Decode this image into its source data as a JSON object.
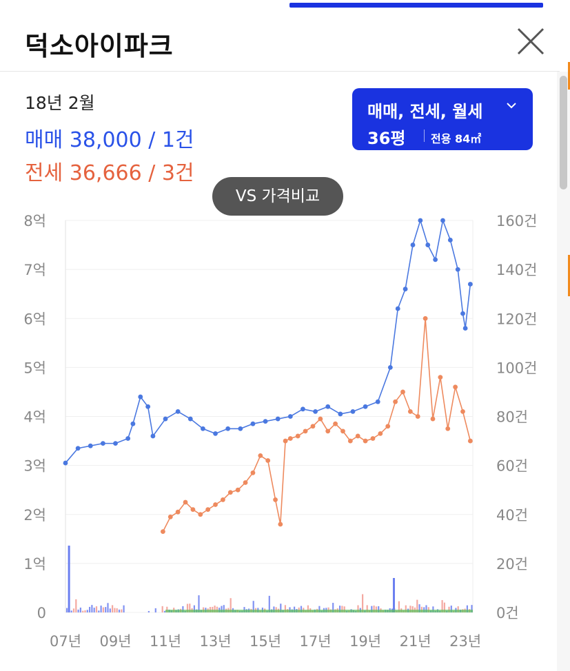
{
  "header": {
    "title": "덕소아이파크"
  },
  "summary": {
    "date": "18년 2월",
    "sale_text": "매매 38,000 / 1건",
    "jeonse_text": "전세 36,666 / 3건"
  },
  "filter": {
    "types": "매매, 전세, 월세",
    "area": "36평",
    "exclusive": "전용 84㎡"
  },
  "compare_button": "VS 가격비교",
  "colors": {
    "accent": "#1a33e0",
    "sale": "#4a78e0",
    "jeonse": "#ee8a5e",
    "volume_green": "#5cc05c"
  },
  "chart_data": {
    "type": "line",
    "x_tick_labels": [
      "07년",
      "09년",
      "11년",
      "13년",
      "15년",
      "17년",
      "19년",
      "21년",
      "23년"
    ],
    "y_left_labels": [
      "0",
      "1억",
      "2억",
      "3억",
      "4억",
      "5억",
      "6억",
      "7억",
      "8억"
    ],
    "y_left_range": [
      0,
      8
    ],
    "y_right_labels": [
      "0건",
      "20건",
      "40건",
      "60건",
      "80건",
      "100건",
      "120건",
      "140건",
      "160건"
    ],
    "y_right_range": [
      0,
      160
    ],
    "x_range": [
      2007.0,
      2023.3
    ],
    "series": [
      {
        "color": "#4a78e0",
        "x": [
          2007.0,
          2007.5,
          2008.0,
          2008.5,
          2009.0,
          2009.5,
          2009.7,
          2010.0,
          2010.3,
          2010.5,
          2011.0,
          2011.5,
          2012.0,
          2012.5,
          2013.0,
          2013.5,
          2014.0,
          2014.5,
          2015.0,
          2015.5,
          2016.0,
          2016.5,
          2017.0,
          2017.5,
          2018.0,
          2018.5,
          2019.0,
          2019.5,
          2020.0,
          2020.3,
          2020.6,
          2020.9,
          2021.2,
          2021.5,
          2021.8,
          2022.1,
          2022.4,
          2022.7,
          2022.9,
          2023.0,
          2023.2
        ],
        "values": [
          3.05,
          3.35,
          3.4,
          3.45,
          3.45,
          3.55,
          3.85,
          4.4,
          4.2,
          3.6,
          3.95,
          4.1,
          3.95,
          3.75,
          3.65,
          3.75,
          3.75,
          3.85,
          3.9,
          3.95,
          4.0,
          4.15,
          4.1,
          4.2,
          4.05,
          4.1,
          4.2,
          4.3,
          5.0,
          6.2,
          6.6,
          7.5,
          8.0,
          7.5,
          7.2,
          8.0,
          7.6,
          7.0,
          6.1,
          5.8,
          6.7
        ]
      },
      {
        "color": "#ee8a5e",
        "x": [
          2010.9,
          2011.2,
          2011.5,
          2011.8,
          2012.1,
          2012.4,
          2012.7,
          2013.0,
          2013.3,
          2013.6,
          2013.9,
          2014.2,
          2014.5,
          2014.8,
          2015.1,
          2015.4,
          2015.6,
          2015.8,
          2016.0,
          2016.3,
          2016.6,
          2016.9,
          2017.2,
          2017.5,
          2017.8,
          2018.1,
          2018.4,
          2018.7,
          2019.0,
          2019.3,
          2019.6,
          2019.9,
          2020.2,
          2020.5,
          2020.8,
          2021.1,
          2021.4,
          2021.7,
          2022.0,
          2022.3,
          2022.6,
          2022.9,
          2023.2
        ],
        "values": [
          1.65,
          1.95,
          2.05,
          2.25,
          2.1,
          2.0,
          2.1,
          2.2,
          2.3,
          2.45,
          2.5,
          2.65,
          2.85,
          3.2,
          3.1,
          2.3,
          1.8,
          3.5,
          3.55,
          3.6,
          3.7,
          3.8,
          3.95,
          3.7,
          3.85,
          3.7,
          3.5,
          3.6,
          3.5,
          3.55,
          3.65,
          3.8,
          4.3,
          4.5,
          4.1,
          4.0,
          6.0,
          3.95,
          4.8,
          3.75,
          4.6,
          4.1,
          3.5
        ]
      }
    ],
    "volume_bars_present": true
  }
}
